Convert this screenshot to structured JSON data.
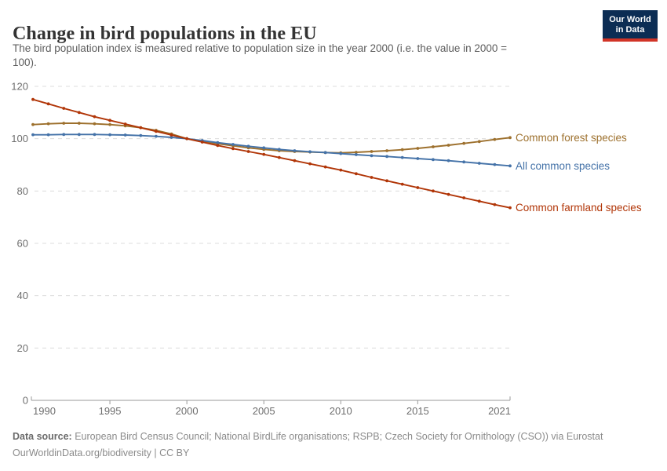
{
  "header": {
    "title": "Change in bird populations in the EU",
    "logo_line1": "Our World",
    "logo_line2": "in Data"
  },
  "subtitle": {
    "line1": "The bird population index is measured relative to population size in the year 2000 (i.e. the value in 2000 =",
    "line2": "100)."
  },
  "chart_data": {
    "type": "line",
    "title": "Change in bird populations in the EU",
    "xlabel": "",
    "ylabel": "",
    "ylim": [
      0,
      120
    ],
    "yticks": [
      0,
      20,
      40,
      60,
      80,
      100,
      120
    ],
    "xticks": [
      1990,
      1995,
      2000,
      2005,
      2010,
      2015,
      2021
    ],
    "grid": true,
    "legend_position": "right-of-line-ends",
    "x": [
      1990,
      1991,
      1992,
      1993,
      1994,
      1995,
      1996,
      1997,
      1998,
      1999,
      2000,
      2001,
      2002,
      2003,
      2004,
      2005,
      2006,
      2007,
      2008,
      2009,
      2010,
      2011,
      2012,
      2013,
      2014,
      2015,
      2016,
      2017,
      2018,
      2019,
      2020,
      2021
    ],
    "series": [
      {
        "name": "Common forest species",
        "color": "#9d702d",
        "values": [
          105.4,
          105.7,
          105.9,
          105.9,
          105.7,
          105.4,
          104.9,
          104.2,
          103.2,
          101.8,
          100.0,
          99.0,
          98.1,
          97.3,
          96.5,
          95.9,
          95.4,
          95.1,
          94.9,
          94.7,
          94.6,
          94.8,
          95.1,
          95.4,
          95.8,
          96.3,
          96.9,
          97.5,
          98.2,
          98.9,
          99.7,
          100.4
        ]
      },
      {
        "name": "All common species",
        "color": "#4472a8",
        "values": [
          101.5,
          101.5,
          101.6,
          101.6,
          101.6,
          101.5,
          101.4,
          101.2,
          100.9,
          100.5,
          100.0,
          99.3,
          98.5,
          97.8,
          97.1,
          96.5,
          95.9,
          95.4,
          95.0,
          94.7,
          94.3,
          93.9,
          93.5,
          93.2,
          92.8,
          92.4,
          92.0,
          91.6,
          91.1,
          90.6,
          90.1,
          89.6
        ]
      },
      {
        "name": "Common farmland species",
        "color": "#b13507",
        "values": [
          115.0,
          113.3,
          111.6,
          110.0,
          108.4,
          107.0,
          105.6,
          104.2,
          102.8,
          101.4,
          100.0,
          98.7,
          97.4,
          96.2,
          95.1,
          94.0,
          92.8,
          91.6,
          90.4,
          89.2,
          88.0,
          86.6,
          85.2,
          83.9,
          82.6,
          81.3,
          80.0,
          78.7,
          77.4,
          76.1,
          74.8,
          73.6
        ]
      }
    ]
  },
  "footer": {
    "source_label": "Data source:",
    "source_text": " European Bird Census Council; National BirdLife organisations; RSPB; Czech Society for Ornithology (CSO)) via Eurostat",
    "link_line": "OurWorldinData.org/biodiversity | CC BY"
  },
  "colors": {
    "accent_navy": "#0c2d54",
    "accent_red": "#d13427",
    "gridline": "#dcdcdc",
    "axis": "#999999",
    "tick_text": "#6e6e6e"
  }
}
